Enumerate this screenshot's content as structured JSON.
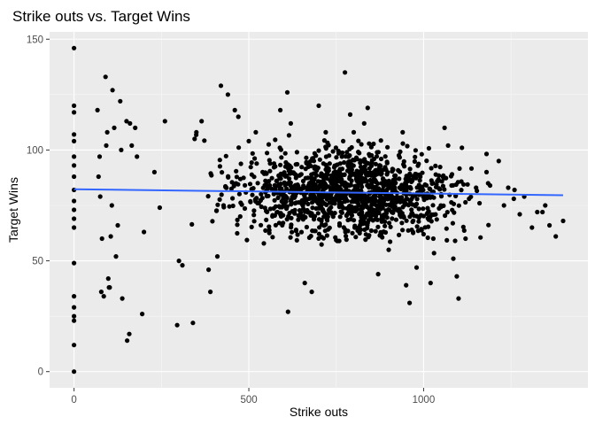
{
  "chart_data": {
    "type": "scatter",
    "title": "Strike outs vs. Target Wins",
    "xlabel": "Strike outs",
    "ylabel": "Target Wins",
    "xlim": [
      -70,
      1470
    ],
    "ylim": [
      -7.3,
      153.3
    ],
    "x_ticks": [
      0,
      500,
      1000
    ],
    "y_ticks": [
      0,
      50,
      100,
      150
    ],
    "x_tick_labels": [
      "0",
      "500",
      "1000"
    ],
    "y_tick_labels": [
      "0",
      "50",
      "100",
      "150"
    ],
    "grid": true,
    "legend": "none",
    "colors": {
      "panel": "#ebebeb",
      "grid_major": "#ffffff",
      "points": "#000000",
      "trend": "#3366ff"
    },
    "trend_line": {
      "x": [
        0,
        1399
      ],
      "y": [
        82.3,
        79.6
      ]
    },
    "points": [
      [
        0,
        146
      ],
      [
        0,
        120
      ],
      [
        0,
        117
      ],
      [
        0,
        107
      ],
      [
        0,
        104
      ],
      [
        0,
        97
      ],
      [
        0,
        93
      ],
      [
        0,
        88
      ],
      [
        0,
        82
      ],
      [
        0,
        77
      ],
      [
        0,
        73
      ],
      [
        0,
        69
      ],
      [
        0,
        65
      ],
      [
        0,
        49
      ],
      [
        0,
        34
      ],
      [
        0,
        29
      ],
      [
        0,
        25
      ],
      [
        0,
        23
      ],
      [
        0,
        12
      ],
      [
        0,
        0
      ],
      [
        67,
        118
      ],
      [
        70,
        88
      ],
      [
        73,
        97
      ],
      [
        75,
        79
      ],
      [
        80,
        60
      ],
      [
        78,
        36
      ],
      [
        85,
        34
      ],
      [
        90,
        133
      ],
      [
        92,
        102
      ],
      [
        95,
        108
      ],
      [
        98,
        42
      ],
      [
        100,
        38
      ],
      [
        102,
        38
      ],
      [
        105,
        61
      ],
      [
        108,
        75
      ],
      [
        110,
        127
      ],
      [
        115,
        110
      ],
      [
        120,
        52
      ],
      [
        125,
        66
      ],
      [
        132,
        122
      ],
      [
        135,
        100
      ],
      [
        138,
        33
      ],
      [
        150,
        113
      ],
      [
        152,
        14
      ],
      [
        158,
        17
      ],
      [
        160,
        112
      ],
      [
        165,
        102
      ],
      [
        175,
        110
      ],
      [
        180,
        97
      ],
      [
        195,
        26
      ],
      [
        200,
        63
      ],
      [
        230,
        90
      ],
      [
        245,
        74
      ],
      [
        260,
        113
      ],
      [
        295,
        21
      ],
      [
        300,
        50
      ],
      [
        310,
        48
      ],
      [
        340,
        22
      ],
      [
        345,
        105
      ],
      [
        350,
        108
      ],
      [
        365,
        113
      ],
      [
        385,
        46
      ],
      [
        390,
        36
      ],
      [
        410,
        52
      ],
      [
        420,
        129
      ],
      [
        440,
        125
      ],
      [
        460,
        118
      ],
      [
        470,
        115
      ],
      [
        500,
        104
      ],
      [
        520,
        108
      ],
      [
        560,
        84
      ],
      [
        590,
        118
      ],
      [
        610,
        126
      ],
      [
        612,
        27
      ],
      [
        620,
        112
      ],
      [
        660,
        40
      ],
      [
        680,
        36
      ],
      [
        700,
        120
      ],
      [
        720,
        108
      ],
      [
        760,
        90
      ],
      [
        770,
        104
      ],
      [
        775,
        135
      ],
      [
        790,
        116
      ],
      [
        800,
        108
      ],
      [
        830,
        112
      ],
      [
        840,
        119
      ],
      [
        870,
        44
      ],
      [
        900,
        55
      ],
      [
        940,
        108
      ],
      [
        950,
        39
      ],
      [
        960,
        31
      ],
      [
        980,
        47
      ],
      [
        1000,
        62
      ],
      [
        1020,
        40
      ],
      [
        1060,
        110
      ],
      [
        1070,
        102
      ],
      [
        1080,
        84
      ],
      [
        1085,
        51
      ],
      [
        1090,
        59
      ],
      [
        1095,
        43
      ],
      [
        1100,
        33
      ],
      [
        1120,
        60
      ],
      [
        1130,
        78
      ],
      [
        1150,
        83
      ],
      [
        1160,
        76
      ],
      [
        1180,
        90
      ],
      [
        1190,
        84
      ],
      [
        1215,
        95
      ],
      [
        1230,
        75
      ],
      [
        1242,
        83
      ],
      [
        1258,
        78
      ],
      [
        1260,
        82
      ],
      [
        1275,
        71
      ],
      [
        1288,
        79
      ],
      [
        1310,
        65
      ],
      [
        1325,
        72
      ],
      [
        1340,
        72
      ],
      [
        1348,
        75
      ],
      [
        1360,
        66
      ],
      [
        1378,
        61
      ],
      [
        1399,
        68
      ]
    ],
    "cloud": {
      "count": 1300,
      "x_range": [
        320,
        1200
      ],
      "x_center": 780,
      "y_center": 81,
      "y_spread": 13,
      "description_note": ""
    }
  }
}
